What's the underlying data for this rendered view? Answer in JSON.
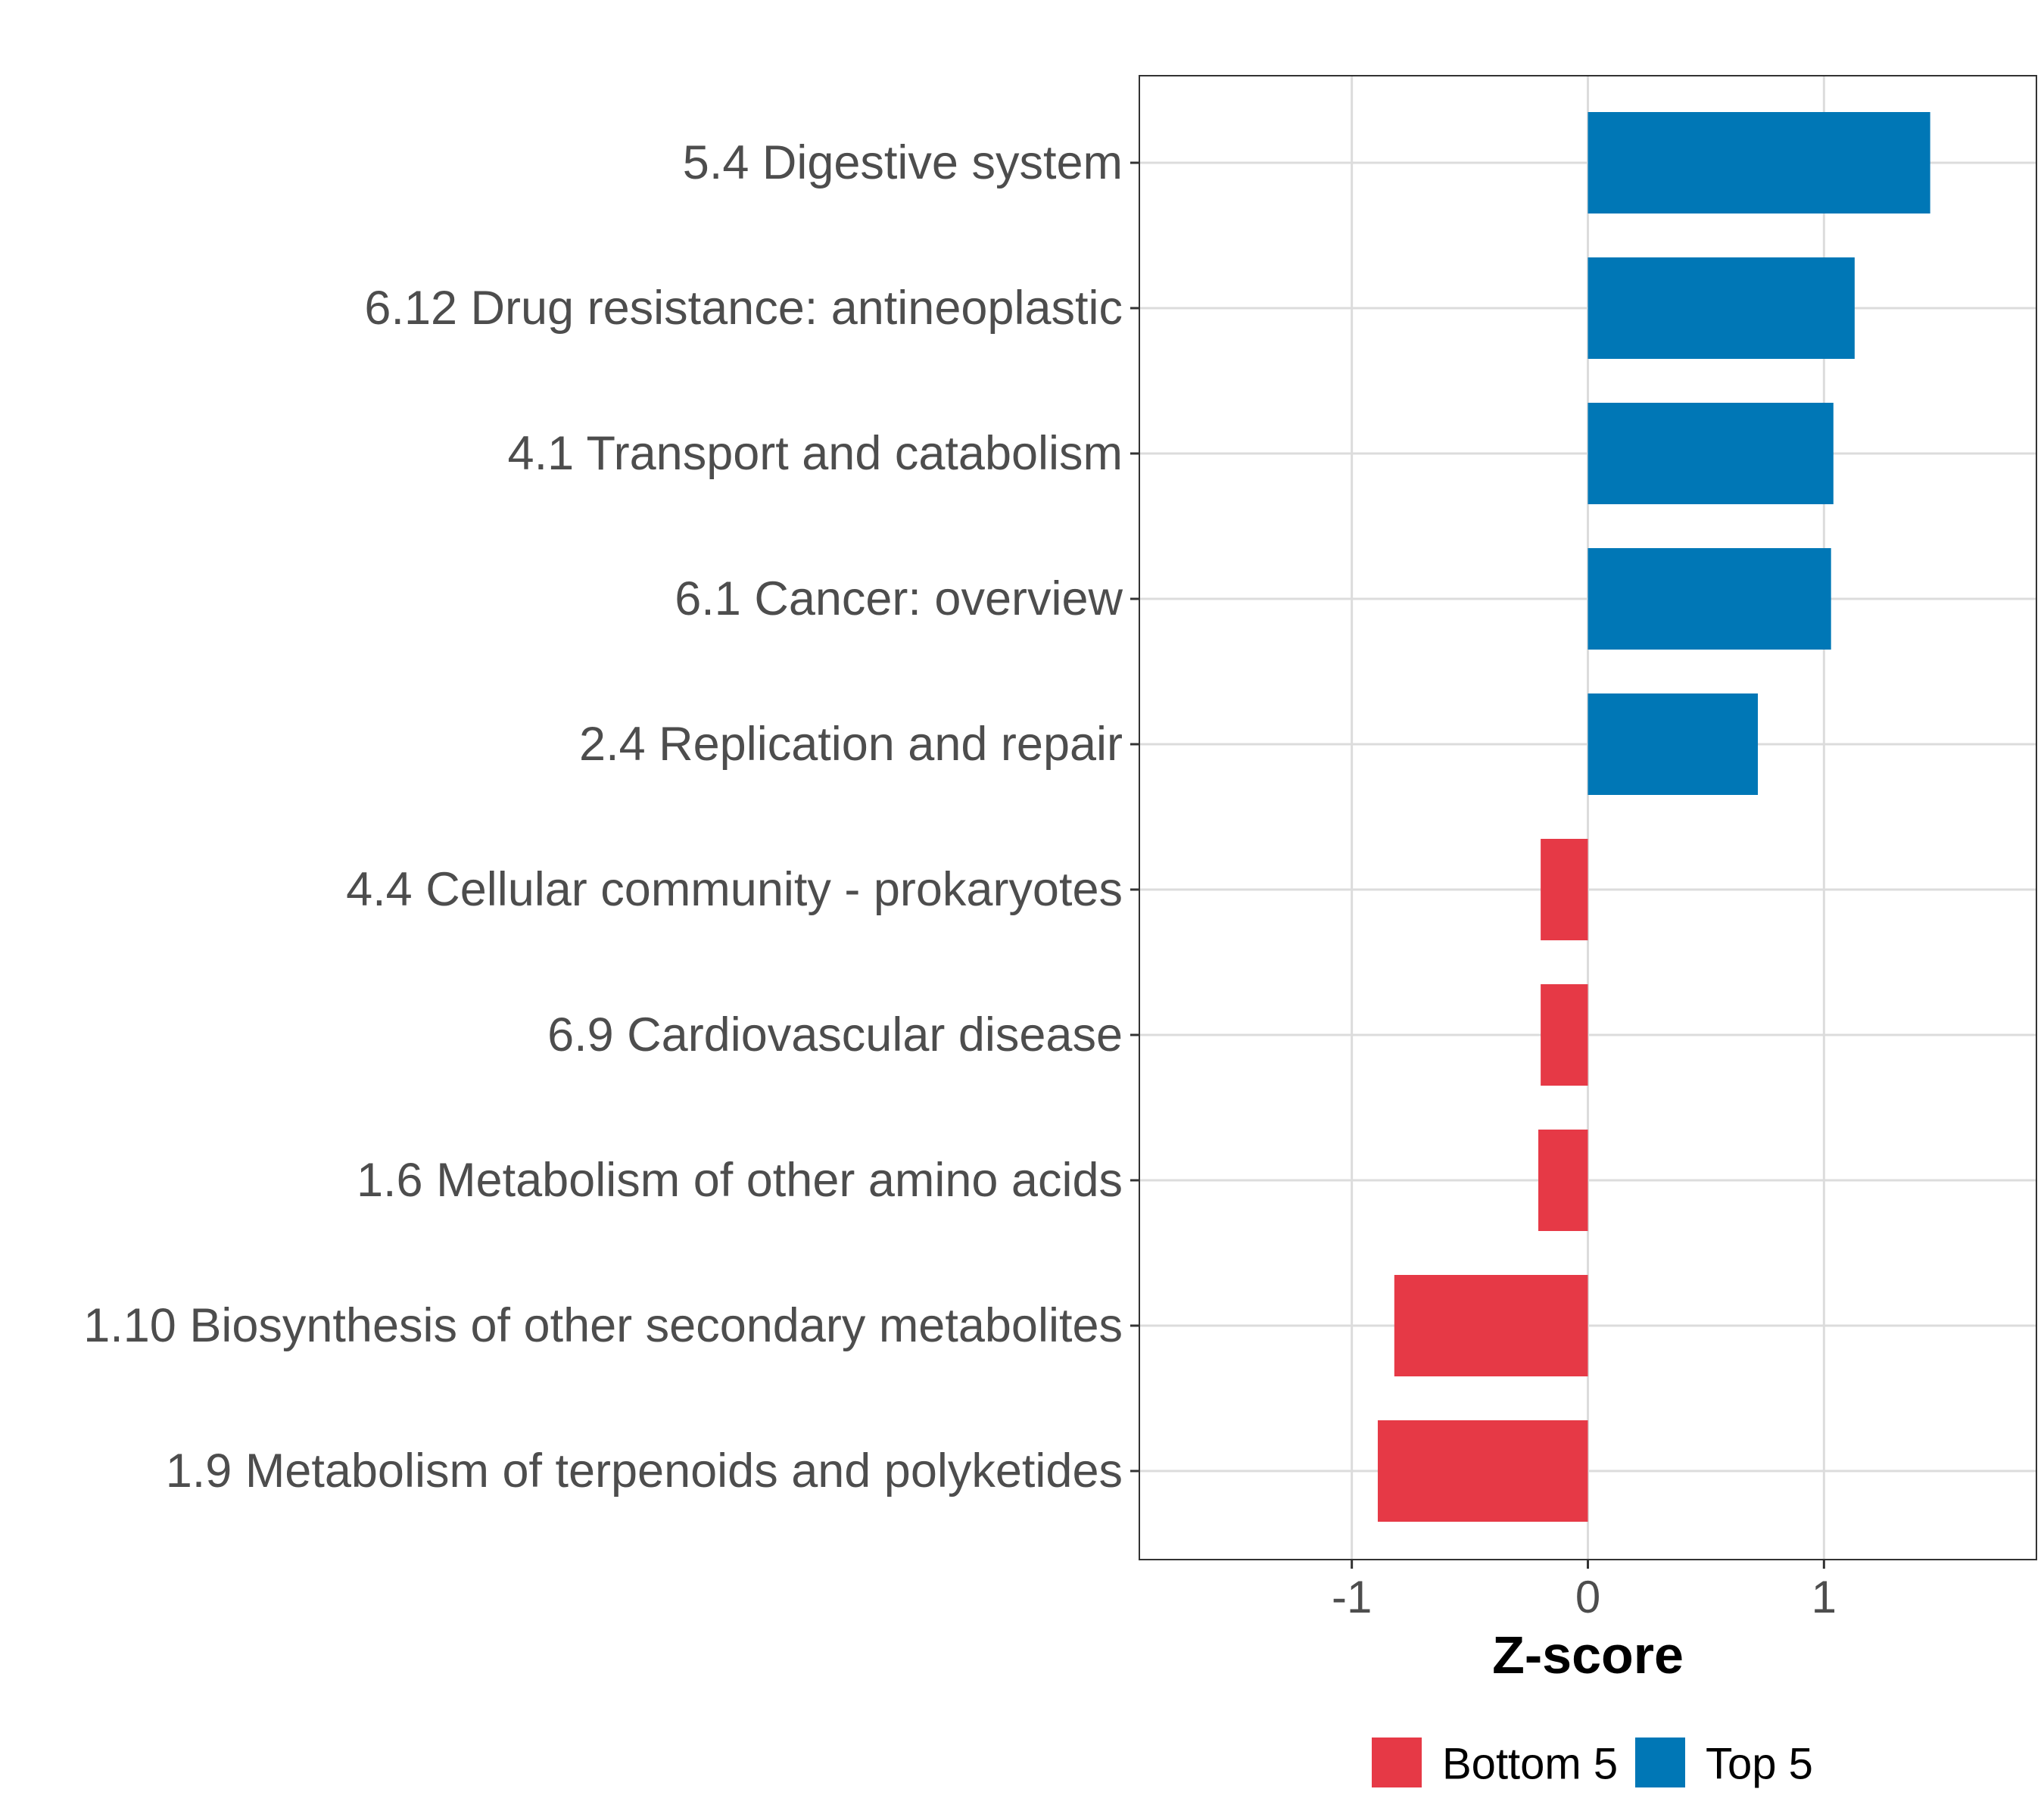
{
  "chart_data": {
    "type": "bar",
    "orientation": "horizontal",
    "title": "",
    "xlabel": "Z-score",
    "ylabel": "",
    "xlim": [
      -1.9,
      1.9
    ],
    "xticks": [
      -1,
      0,
      1
    ],
    "xtick_labels": [
      "-1",
      "0",
      "1"
    ],
    "grid": true,
    "legend_position": "bottom",
    "categories": [
      "5.4 Digestive system",
      "6.12 Drug resistance: antineoplastic",
      "4.1 Transport and catabolism",
      "6.1 Cancer: overview",
      "2.4 Replication and repair",
      "4.4 Cellular community - prokaryotes",
      "6.9 Cardiovascular disease",
      "1.6 Metabolism of other amino acids",
      "1.10 Biosynthesis of other secondary metabolites",
      "1.9 Metabolism of terpenoids and polyketides"
    ],
    "values": [
      1.45,
      1.13,
      1.04,
      1.03,
      0.72,
      -0.2,
      -0.2,
      -0.21,
      -0.82,
      -0.89
    ],
    "groups": [
      "Top 5",
      "Top 5",
      "Top 5",
      "Top 5",
      "Top 5",
      "Bottom 5",
      "Bottom 5",
      "Bottom 5",
      "Bottom 5",
      "Bottom 5"
    ],
    "legend": [
      {
        "name": "Bottom 5",
        "color": "#e63946"
      },
      {
        "name": "Top 5",
        "color": "#0077b6"
      }
    ]
  }
}
